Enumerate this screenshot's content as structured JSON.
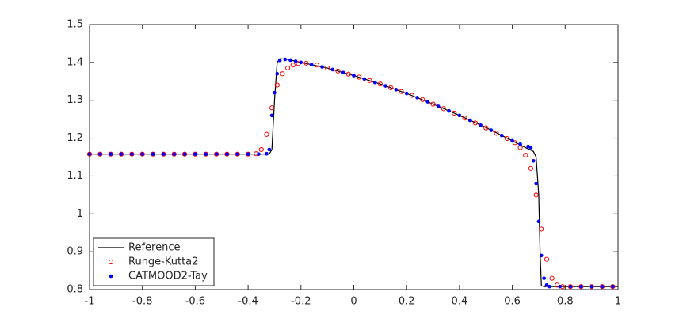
{
  "chart_data": {
    "type": "line",
    "xlim": [
      -1,
      1
    ],
    "xticks": [
      -1,
      -0.8,
      -0.6,
      -0.4,
      -0.2,
      0,
      0.2,
      0.4,
      0.6,
      0.8,
      1
    ],
    "ylim": [
      0.8,
      1.5
    ],
    "yticks": [
      0.8,
      0.9,
      1,
      1.1,
      1.2,
      1.3,
      1.4,
      1.5
    ],
    "legend": "lower left",
    "series": [
      {
        "name": "Reference",
        "color": "#000000",
        "style": "line",
        "x": [
          -1,
          -0.32,
          -0.31,
          -0.3,
          -0.29,
          -0.28,
          -0.25,
          -0.2,
          -0.1,
          0,
          0.1,
          0.2,
          0.3,
          0.4,
          0.5,
          0.6,
          0.65,
          0.68,
          0.69,
          0.7,
          0.705,
          0.71,
          0.72,
          1
        ],
        "values": [
          1.158,
          1.158,
          1.17,
          1.3,
          1.4,
          1.41,
          1.408,
          1.4,
          1.385,
          1.365,
          1.343,
          1.318,
          1.29,
          1.26,
          1.228,
          1.193,
          1.175,
          1.165,
          1.15,
          1.05,
          0.9,
          0.81,
          0.808,
          0.808
        ]
      },
      {
        "name": "Runge-Kutta2",
        "color": "#ff0000",
        "style": "circle",
        "x": [
          -1,
          -0.96,
          -0.92,
          -0.88,
          -0.84,
          -0.8,
          -0.76,
          -0.72,
          -0.68,
          -0.64,
          -0.6,
          -0.56,
          -0.52,
          -0.48,
          -0.44,
          -0.4,
          -0.37,
          -0.35,
          -0.33,
          -0.31,
          -0.29,
          -0.27,
          -0.25,
          -0.23,
          -0.21,
          -0.18,
          -0.14,
          -0.1,
          -0.06,
          -0.02,
          0.02,
          0.06,
          0.1,
          0.14,
          0.18,
          0.22,
          0.26,
          0.3,
          0.34,
          0.38,
          0.42,
          0.46,
          0.5,
          0.54,
          0.58,
          0.61,
          0.63,
          0.65,
          0.67,
          0.69,
          0.71,
          0.73,
          0.75,
          0.77,
          0.79,
          0.82,
          0.86,
          0.9,
          0.94,
          0.98
        ],
        "values": [
          1.158,
          1.158,
          1.158,
          1.158,
          1.158,
          1.158,
          1.158,
          1.158,
          1.158,
          1.158,
          1.158,
          1.158,
          1.158,
          1.158,
          1.158,
          1.158,
          1.159,
          1.17,
          1.21,
          1.28,
          1.34,
          1.37,
          1.385,
          1.393,
          1.397,
          1.398,
          1.393,
          1.385,
          1.377,
          1.369,
          1.361,
          1.352,
          1.343,
          1.333,
          1.323,
          1.313,
          1.302,
          1.29,
          1.278,
          1.266,
          1.253,
          1.24,
          1.227,
          1.213,
          1.199,
          1.188,
          1.175,
          1.155,
          1.12,
          1.05,
          0.96,
          0.88,
          0.83,
          0.812,
          0.808,
          0.808,
          0.808,
          0.808,
          0.808,
          0.808
        ]
      },
      {
        "name": "CATMOOD2-Tay",
        "color": "#0000ff",
        "style": "dot",
        "x": [
          -1,
          -0.96,
          -0.92,
          -0.88,
          -0.84,
          -0.8,
          -0.76,
          -0.72,
          -0.68,
          -0.64,
          -0.6,
          -0.56,
          -0.52,
          -0.48,
          -0.44,
          -0.4,
          -0.36,
          -0.33,
          -0.32,
          -0.31,
          -0.3,
          -0.29,
          -0.28,
          -0.26,
          -0.24,
          -0.22,
          -0.2,
          -0.16,
          -0.12,
          -0.08,
          -0.04,
          0,
          0.04,
          0.08,
          0.12,
          0.16,
          0.2,
          0.24,
          0.28,
          0.32,
          0.36,
          0.4,
          0.44,
          0.48,
          0.52,
          0.56,
          0.6,
          0.63,
          0.66,
          0.67,
          0.68,
          0.69,
          0.7,
          0.71,
          0.72,
          0.73,
          0.74,
          0.78,
          0.82,
          0.86,
          0.9,
          0.94,
          0.98
        ],
        "values": [
          1.158,
          1.158,
          1.158,
          1.158,
          1.158,
          1.158,
          1.158,
          1.158,
          1.158,
          1.158,
          1.158,
          1.158,
          1.158,
          1.158,
          1.158,
          1.158,
          1.158,
          1.159,
          1.17,
          1.26,
          1.32,
          1.37,
          1.405,
          1.408,
          1.406,
          1.403,
          1.4,
          1.394,
          1.388,
          1.381,
          1.373,
          1.365,
          1.356,
          1.347,
          1.338,
          1.328,
          1.318,
          1.307,
          1.296,
          1.284,
          1.272,
          1.26,
          1.247,
          1.234,
          1.221,
          1.207,
          1.193,
          1.184,
          1.178,
          1.175,
          1.14,
          1.08,
          0.98,
          0.89,
          0.83,
          0.812,
          0.808,
          0.808,
          0.808,
          0.808,
          0.808,
          0.808,
          0.808
        ]
      }
    ]
  }
}
